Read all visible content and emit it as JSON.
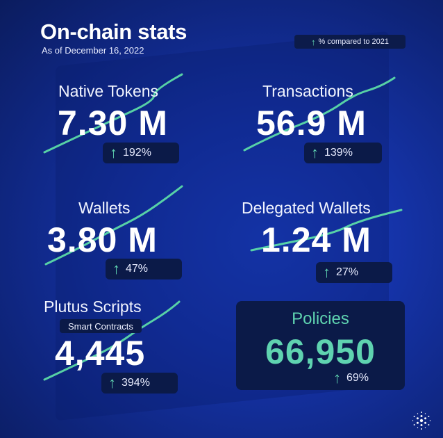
{
  "header": {
    "title": "On-chain stats",
    "subtitle": "As of December 16, 2022"
  },
  "legend": {
    "text": "% compared to 2021",
    "arrow_icon": "up-arrow-icon"
  },
  "stats": {
    "native_tokens": {
      "label": "Native Tokens",
      "value": "7.30 M",
      "change": "192%"
    },
    "transactions": {
      "label": "Transactions",
      "value": "56.9 M",
      "change": "139%"
    },
    "wallets": {
      "label": "Wallets",
      "value": "3.80 M",
      "change": "47%"
    },
    "delegated_wallets": {
      "label": "Delegated Wallets",
      "value": "1.24 M",
      "change": "27%"
    },
    "plutus_scripts": {
      "label": "Plutus Scripts",
      "sublabel": "Smart Contracts",
      "value": "4,445",
      "change": "394%"
    },
    "policies": {
      "label": "Policies",
      "value": "66,950",
      "change": "69%"
    }
  },
  "colors": {
    "accent": "#5fd3b0",
    "background": "#1533a8",
    "pill": "#0b1a48"
  }
}
